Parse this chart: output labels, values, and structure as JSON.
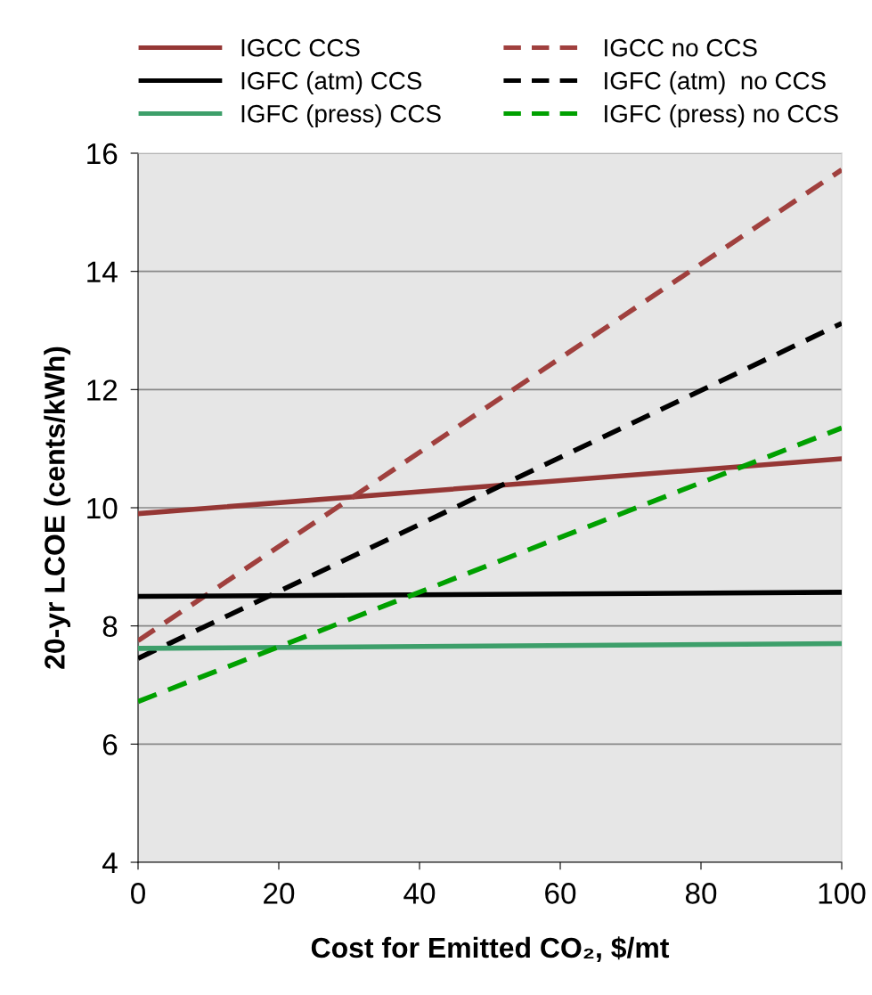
{
  "chart_data": {
    "type": "line",
    "xlabel": "Cost for Emitted CO₂, $/mt",
    "ylabel": "20-yr LCOE (cents/kWh)",
    "x": [
      0,
      100
    ],
    "series": [
      {
        "name": "IGCC CCS",
        "color": "#953735",
        "values": [
          9.9,
          10.83
        ],
        "line_style": "solid"
      },
      {
        "name": "IGCC no CCS",
        "color": "#a0403e",
        "values": [
          7.75,
          15.72
        ],
        "line_style": "dashed"
      },
      {
        "name": "IGFC (atm) CCS",
        "color": "#000000",
        "values": [
          8.5,
          8.57
        ],
        "line_style": "solid"
      },
      {
        "name": "IGFC (atm)  no CCS",
        "color": "#000000",
        "values": [
          7.45,
          13.12
        ],
        "line_style": "dashed"
      },
      {
        "name": "IGFC (press) CCS",
        "color": "#3d9f6a",
        "values": [
          7.62,
          7.7
        ],
        "line_style": "solid"
      },
      {
        "name": "IGFC (press) no CCS",
        "color": "#00a000",
        "values": [
          6.72,
          11.35
        ],
        "line_style": "dashed"
      }
    ],
    "xlim": [
      0,
      100
    ],
    "xticks": [
      0,
      20,
      40,
      60,
      80,
      100
    ],
    "ylim": [
      4,
      16
    ],
    "yticks": [
      4,
      6,
      8,
      10,
      12,
      14,
      16
    ],
    "grid": "y",
    "legend": "top",
    "marker": "none"
  }
}
